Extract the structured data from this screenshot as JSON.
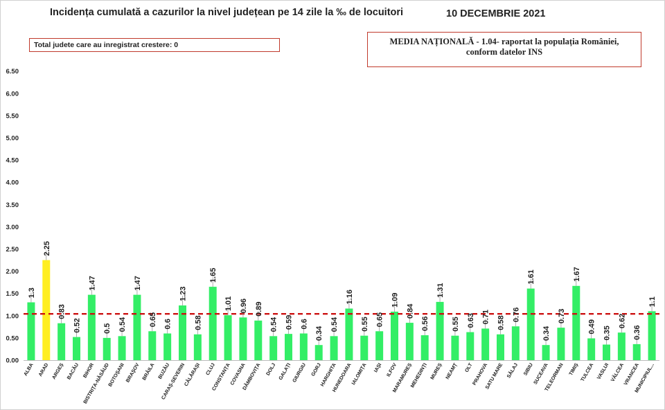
{
  "title": "Incidența cumulată a cazurilor la nivel județean pe 14 zile la ‰ de locuitori",
  "date": "10 DECEMBRIE 2021",
  "growth_box": "Total judete care au inregistrat crestere: 0",
  "national_box": {
    "line1": "MEDIA NAȚIONALĂ - 1.04-  raportat la populația României,",
    "line2": "conform datelor INS"
  },
  "colors": {
    "bar": "#33ee66",
    "highlight_bar": "#ffee22",
    "reference_line": "#cc1111",
    "text": "#222222"
  },
  "chart_data": {
    "type": "bar",
    "categories": [
      "ALBA",
      "ARAD",
      "ARGEȘ",
      "BACĂU",
      "BIHOR",
      "BISTRIȚA-NĂSĂUD",
      "BOTOȘANI",
      "BRAȘOV",
      "BRĂILA",
      "BUZĂU",
      "CARAȘ-SEVERIN",
      "CĂLĂRAȘI",
      "CLUJ",
      "CONSTANȚA",
      "COVASNA",
      "DÂMBOVIȚA",
      "DOLJ",
      "GALAȚI",
      "GIURGIU",
      "GORJ",
      "HARGHITA",
      "HUNEDOARA",
      "IALOMIȚA",
      "IAȘI",
      "ILFOV",
      "MARAMUREȘ",
      "MEHEDINȚI",
      "MUREȘ",
      "NEAMȚ",
      "OLT",
      "PRAHOVA",
      "SATU MARE",
      "SĂLAJ",
      "SIBIU",
      "SUCEAVA",
      "TELEORMAN",
      "TIMIȘ",
      "TULCEA",
      "VASLUI",
      "VÂLCEA",
      "VRANCEA",
      "MUNICIPIUL..."
    ],
    "values": [
      1.3,
      2.25,
      0.83,
      0.52,
      1.47,
      0.5,
      0.54,
      1.47,
      0.65,
      0.6,
      1.23,
      0.58,
      1.65,
      1.01,
      0.96,
      0.89,
      0.54,
      0.59,
      0.6,
      0.34,
      0.54,
      1.16,
      0.55,
      0.65,
      1.09,
      0.84,
      0.56,
      1.31,
      0.55,
      0.63,
      0.71,
      0.58,
      0.76,
      1.61,
      0.34,
      0.73,
      1.67,
      0.49,
      0.35,
      0.62,
      0.36,
      1.1
    ],
    "value_labels": [
      "1.3",
      "2.25",
      "0.83",
      "0.52",
      "1.47",
      "0.5",
      "0.54",
      "1.47",
      "0.65",
      "0.6",
      "1.23",
      "0.58",
      "1.65",
      "1.01",
      "0.96",
      "0.89",
      "0.54",
      "0.59",
      "0.6",
      "0.34",
      "0.54",
      "1.16",
      "0.55",
      "0.65",
      "1.09",
      "0.84",
      "0.56",
      "1.31",
      "0.55",
      "0.63",
      "0.71",
      "0.58",
      "0.76",
      "1.61",
      "0.34",
      "0.73",
      "1.67",
      "0.49",
      "0.35",
      "0.62",
      "0.36",
      "1.1"
    ],
    "highlight_category": "ARAD",
    "reference_value": 1.04,
    "reference_style": "dashed",
    "ylim": [
      0,
      6.5
    ],
    "yticks": [
      "0.00",
      "0.50",
      "1.00",
      "1.50",
      "2.00",
      "2.50",
      "3.00",
      "3.50",
      "4.00",
      "4.50",
      "5.00",
      "5.50",
      "6.00",
      "6.50"
    ],
    "grid": false,
    "legend": "none",
    "xlabel": "",
    "ylabel": ""
  }
}
